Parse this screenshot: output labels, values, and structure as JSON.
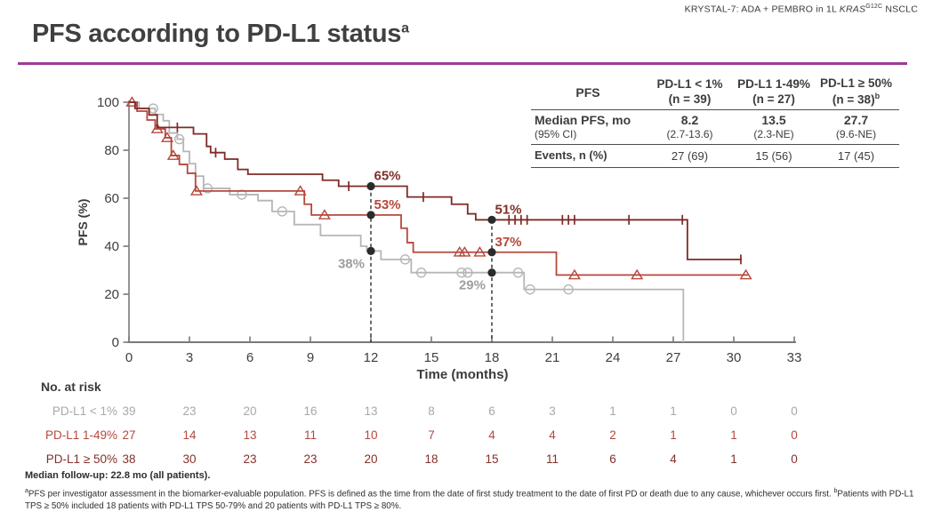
{
  "slide": {
    "brand": {
      "prefix": "KRYSTAL-7: ADA + PEMBRO in 1L ",
      "gene": "KRAS",
      "gene_sup": "G12C",
      "suffix": " NSCLC"
    },
    "title": {
      "text": "PFS according to PD-L1 status",
      "sup": "a"
    },
    "accent_color": "#9e3a9b"
  },
  "pfs_table": {
    "corner_label": "PFS",
    "columns": [
      {
        "title": "PD-L1 < 1%",
        "n": "(n = 39)",
        "n_sup": ""
      },
      {
        "title": "PD-L1 1-49%",
        "n": "(n = 27)",
        "n_sup": ""
      },
      {
        "title": "PD-L1 ≥ 50%",
        "n": "(n = 38)",
        "n_sup": "b"
      }
    ],
    "rows": [
      {
        "label": "Median PFS, mo",
        "label_sub": "(95% CI)",
        "values": [
          "8.2",
          "13.5",
          "27.7"
        ],
        "subs": [
          "(2.7-13.6)",
          "(2.3-NE)",
          "(9.6-NE)"
        ]
      },
      {
        "label": "Events, n (%)",
        "values": [
          "27 (69)",
          "15 (56)",
          "17 (45)"
        ]
      }
    ]
  },
  "chart_data": {
    "type": "line",
    "subtype": "kaplan-meier-step",
    "title": "",
    "xlabel": "Time (months)",
    "ylabel": "PFS (%)",
    "xlim": [
      0,
      33
    ],
    "ylim": [
      0,
      100
    ],
    "xticks": [
      0,
      3,
      6,
      9,
      12,
      15,
      18,
      21,
      24,
      27,
      30,
      33
    ],
    "yticks": [
      0,
      20,
      40,
      60,
      80,
      100
    ],
    "grid": false,
    "axis_color": "#7a7a7a",
    "tick_label_color": "#3f3f3f",
    "series": [
      {
        "name": "PD-L1 < 1%",
        "color": "#b6b6b6",
        "label_color": "#9e9e9e",
        "marker": "circle",
        "steps": [
          [
            0,
            100
          ],
          [
            0.5,
            97.4
          ],
          [
            1.3,
            94.9
          ],
          [
            1.7,
            92.3
          ],
          [
            2.0,
            87.2
          ],
          [
            2.4,
            84.6
          ],
          [
            2.7,
            79.5
          ],
          [
            3.0,
            74.4
          ],
          [
            3.3,
            69.2
          ],
          [
            3.7,
            64.1
          ],
          [
            5.0,
            61.5
          ],
          [
            6.4,
            59
          ],
          [
            7.1,
            54.5
          ],
          [
            8.2,
            49
          ],
          [
            9.5,
            44.5
          ],
          [
            11.5,
            40
          ],
          [
            11.8,
            38
          ],
          [
            12.5,
            34.5
          ],
          [
            14.0,
            29
          ],
          [
            19.6,
            22
          ],
          [
            27.5,
            0
          ]
        ],
        "marks": [
          [
            1.2,
            97.4
          ],
          [
            2.5,
            84.6
          ],
          [
            3.9,
            64.1
          ],
          [
            5.6,
            61.5
          ],
          [
            7.6,
            54.5
          ],
          [
            13.7,
            34.5
          ],
          [
            14.5,
            29
          ],
          [
            16.5,
            29
          ],
          [
            16.8,
            29
          ],
          [
            19.3,
            29
          ],
          [
            19.9,
            22
          ],
          [
            21.8,
            22
          ]
        ]
      },
      {
        "name": "PD-L1 1-49%",
        "color": "#b5483c",
        "label_color": "#b5483c",
        "marker": "triangle",
        "steps": [
          [
            0,
            100
          ],
          [
            0.4,
            96.3
          ],
          [
            0.9,
            92.6
          ],
          [
            1.3,
            88.9
          ],
          [
            1.8,
            85.2
          ],
          [
            2.1,
            77.8
          ],
          [
            2.5,
            74.1
          ],
          [
            2.9,
            70.4
          ],
          [
            3.3,
            63
          ],
          [
            8.7,
            57.5
          ],
          [
            9.05,
            53
          ],
          [
            13.5,
            47.5
          ],
          [
            13.8,
            41.5
          ],
          [
            14.1,
            37.5
          ],
          [
            21.2,
            28
          ],
          [
            30.7,
            28
          ]
        ],
        "marks": [
          [
            0.15,
            100
          ],
          [
            1.4,
            88.9
          ],
          [
            1.9,
            85.2
          ],
          [
            2.2,
            77.8
          ],
          [
            3.35,
            63
          ],
          [
            8.5,
            63
          ],
          [
            9.7,
            53
          ],
          [
            16.4,
            37.5
          ],
          [
            16.65,
            37.5
          ],
          [
            17.4,
            37.5
          ],
          [
            22.1,
            28
          ],
          [
            25.2,
            28
          ],
          [
            30.6,
            28
          ]
        ]
      },
      {
        "name": "PD-L1 ≥ 50%",
        "color": "#7e2b26",
        "label_color": "#82302a",
        "marker": "censor-tick",
        "steps": [
          [
            0,
            100
          ],
          [
            0.3,
            97.4
          ],
          [
            1.0,
            94.7
          ],
          [
            1.4,
            89.5
          ],
          [
            3.2,
            86.8
          ],
          [
            3.85,
            81.6
          ],
          [
            4.05,
            79
          ],
          [
            4.75,
            76.3
          ],
          [
            5.4,
            72
          ],
          [
            5.9,
            70
          ],
          [
            9.6,
            67.5
          ],
          [
            10.4,
            65
          ],
          [
            13.8,
            60.5
          ],
          [
            16.0,
            57.5
          ],
          [
            16.8,
            53.5
          ],
          [
            17.2,
            51
          ],
          [
            27.7,
            34.5
          ],
          [
            30.4,
            34.5
          ]
        ],
        "marks": [
          [
            2.4,
            89.5
          ],
          [
            4.3,
            79
          ],
          [
            10.9,
            65
          ],
          [
            14.6,
            60.5
          ],
          [
            18.85,
            51
          ],
          [
            19.15,
            51
          ],
          [
            19.45,
            51
          ],
          [
            19.75,
            51
          ],
          [
            21.5,
            51
          ],
          [
            21.8,
            51
          ],
          [
            22.1,
            51
          ],
          [
            24.8,
            51
          ],
          [
            27.45,
            51
          ],
          [
            30.35,
            34.5
          ]
        ]
      }
    ],
    "annotations": [
      {
        "x": 12,
        "y": 65,
        "label": "65%",
        "color": "#82302a",
        "placement": "above-right"
      },
      {
        "x": 12,
        "y": 53,
        "label": "53%",
        "color": "#b5483c",
        "placement": "above-right"
      },
      {
        "x": 12,
        "y": 38,
        "label": "38%",
        "color": "#9e9e9e",
        "placement": "below-left"
      },
      {
        "x": 18,
        "y": 51,
        "label": "51%",
        "color": "#82302a",
        "placement": "above-right"
      },
      {
        "x": 18,
        "y": 37.5,
        "label": "37%",
        "color": "#b5483c",
        "placement": "above-right"
      },
      {
        "x": 18,
        "y": 29,
        "label": "29%",
        "color": "#9e9e9e",
        "placement": "below-left"
      }
    ],
    "reference_dots": [
      [
        12,
        65
      ],
      [
        12,
        53
      ],
      [
        12,
        38
      ],
      [
        18,
        51
      ],
      [
        18,
        37.5
      ],
      [
        18,
        29
      ]
    ],
    "dashed_lines": [
      {
        "x": 12,
        "y_top": 65
      },
      {
        "x": 18,
        "y_top": 51
      }
    ],
    "risk_table": {
      "title": "No. at risk",
      "months": [
        0,
        3,
        6,
        9,
        12,
        15,
        18,
        21,
        24,
        27,
        30,
        33
      ],
      "rows": [
        {
          "label": "PD-L1 < 1%",
          "color": "#a8a8a8",
          "values": [
            39,
            23,
            20,
            16,
            13,
            8,
            6,
            3,
            1,
            1,
            0,
            0
          ]
        },
        {
          "label": "PD-L1 1-49%",
          "color": "#b5483c",
          "values": [
            27,
            14,
            13,
            11,
            10,
            7,
            4,
            4,
            2,
            1,
            1,
            0
          ]
        },
        {
          "label": "PD-L1 ≥ 50%",
          "color": "#82302a",
          "values": [
            38,
            30,
            23,
            23,
            20,
            18,
            15,
            11,
            6,
            4,
            1,
            0
          ]
        }
      ]
    }
  },
  "footnotes": {
    "followup": "Median follow-up: 22.8 mo (all patients).",
    "sup_a": "a",
    "note_a": "PFS per investigator assessment in the biomarker-evaluable population. PFS is defined as the time from the date of first study treatment to the date of first PD or death due to any cause, whichever occurs first. ",
    "sup_b": "b",
    "note_b": "Patients with PD-L1 TPS ≥ 50% included 18 patients with PD-L1 TPS 50-79% and 20 patients with PD-L1 TPS ≥ 80%."
  }
}
